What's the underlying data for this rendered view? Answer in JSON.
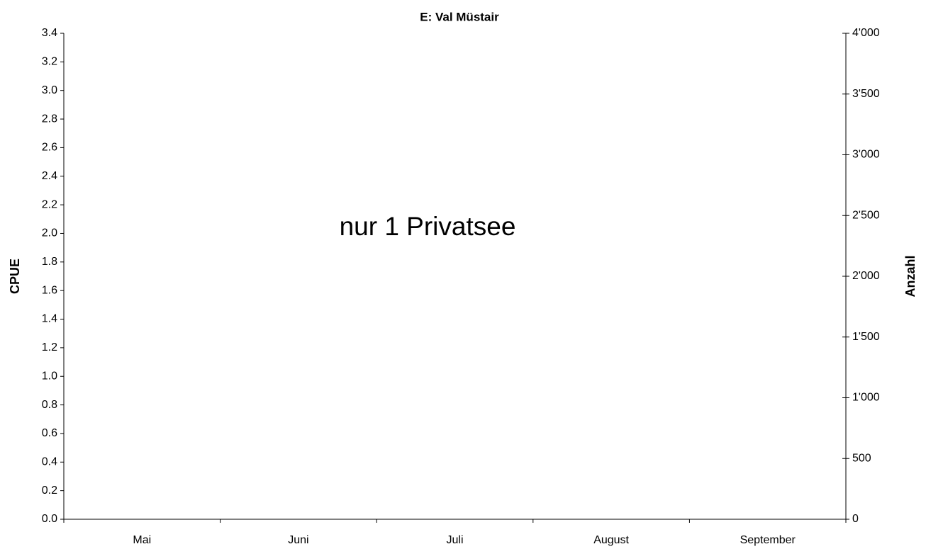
{
  "chart_data": {
    "type": "line",
    "title": "E: Val Müstair",
    "ylabel": "CPUE",
    "y2label": "Anzahl",
    "annotation": "nur 1 Privatsee",
    "categories": [
      "Mai",
      "Juni",
      "Juli",
      "August",
      "September"
    ],
    "ylim": [
      0,
      3.4
    ],
    "yticks": [
      {
        "value": 0,
        "label": "0.0"
      },
      0.2,
      0.4,
      0.6,
      0.8,
      {
        "value": 1,
        "label": "1.0"
      },
      1.2,
      1.4,
      1.6,
      1.8,
      {
        "value": 2,
        "label": "2.0"
      },
      2.2,
      2.4,
      2.6,
      2.8,
      {
        "value": 3,
        "label": "3.0"
      },
      3.2,
      3.4
    ],
    "y2lim": [
      0,
      4000
    ],
    "y2ticks": [
      0,
      500,
      {
        "value": 1000,
        "label": "1'000"
      },
      {
        "value": 1500,
        "label": "1'500"
      },
      {
        "value": 2000,
        "label": "2'000"
      },
      {
        "value": 2500,
        "label": "2'500"
      },
      {
        "value": 3000,
        "label": "3'000"
      },
      {
        "value": 3500,
        "label": "3'500"
      },
      {
        "value": 4000,
        "label": "4'000"
      }
    ],
    "grid": false
  }
}
